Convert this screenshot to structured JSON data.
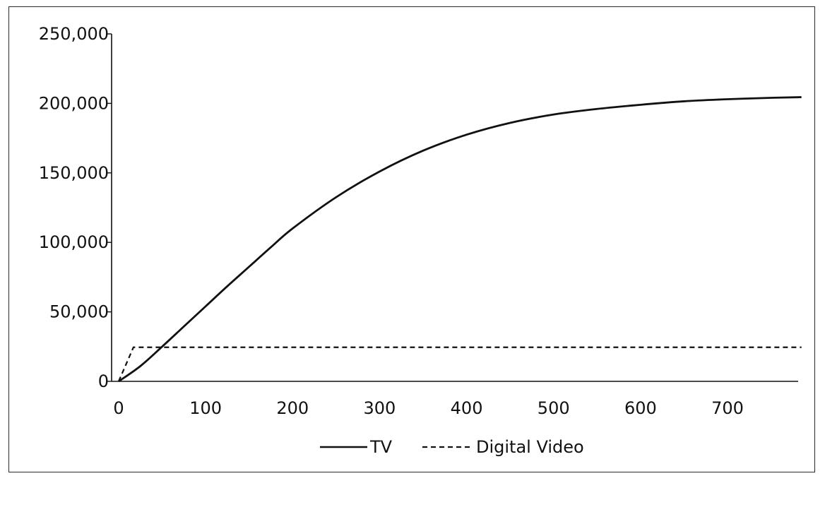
{
  "chart_data": {
    "type": "line",
    "title": "",
    "xlabel": "",
    "ylabel": "",
    "xlim": [
      0,
      785
    ],
    "ylim": [
      0,
      250000
    ],
    "x_ticks": [
      0,
      100,
      200,
      300,
      400,
      500,
      600,
      700
    ],
    "x_tick_labels": [
      "0",
      "100",
      "200",
      "300",
      "400",
      "500",
      "600",
      "700"
    ],
    "y_ticks": [
      0,
      50000,
      100000,
      150000,
      200000,
      250000
    ],
    "y_tick_labels": [
      "0",
      "50,000",
      "100,000",
      "150,000",
      "200,000",
      "250,000"
    ],
    "grid": false,
    "legend_position": "bottom-center",
    "series": [
      {
        "name": "TV",
        "style": "solid",
        "color": "#111111",
        "x": [
          0,
          25,
          50,
          75,
          100,
          125,
          150,
          175,
          200,
          250,
          300,
          350,
          400,
          450,
          500,
          550,
          600,
          650,
          700,
          750,
          785
        ],
        "y": [
          0,
          11000,
          25000,
          39500,
          54000,
          68500,
          82500,
          96500,
          110000,
          132500,
          151000,
          166000,
          177500,
          186000,
          192000,
          196000,
          199000,
          201500,
          203000,
          204000,
          204500
        ]
      },
      {
        "name": "Digital Video",
        "style": "dashed",
        "color": "#111111",
        "x": [
          0,
          17,
          785
        ],
        "y": [
          0,
          24500,
          24500
        ]
      }
    ]
  }
}
